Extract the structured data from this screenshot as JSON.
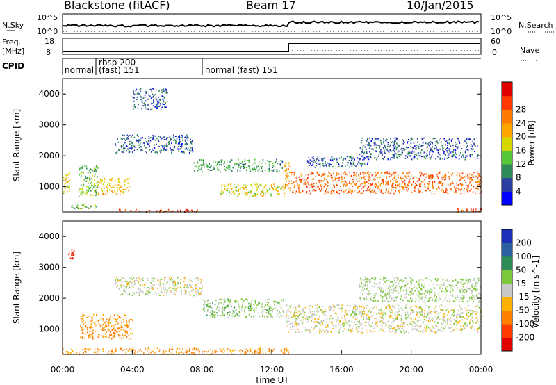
{
  "header": {
    "radar": "Blackstone (fitACF)",
    "beam": "Beam 17",
    "date": "10/Jan/2015"
  },
  "left_labels": {
    "nsky": "N.Sky",
    "freq_line1": "Freq.",
    "freq_line2": "[MHz]",
    "cpid": "CPID"
  },
  "right_labels": {
    "nsearch": "N.Search",
    "nave": "Nave"
  },
  "noise_panel": {
    "left_ticks": [
      "10^5",
      "10^0"
    ],
    "right_ticks": [
      "10^5",
      "10^0"
    ]
  },
  "freq_panel": {
    "left_ticks": [
      "18",
      "8"
    ],
    "right_ticks": [
      "60",
      "0"
    ]
  },
  "cpid_panel": {
    "segments": [
      {
        "start_h": 0.0,
        "label": "normal"
      },
      {
        "start_h": 1.9,
        "label_line1": "rbsp 200",
        "label_line2": "(fast) 151"
      },
      {
        "start_h": 8.0,
        "label": "normal (fast) 151"
      }
    ]
  },
  "x_axis": {
    "label": "Time UT",
    "ticks": [
      "00:00",
      "04:00",
      "08:00",
      "12:00",
      "16:00",
      "20:00",
      "00:00"
    ],
    "tick_hours": [
      0,
      4,
      8,
      12,
      16,
      20,
      24
    ]
  },
  "y_axis": {
    "label": "Slant Range [km]",
    "ticks": [
      "1000",
      "2000",
      "3000",
      "4000"
    ],
    "tick_values": [
      1000,
      2000,
      3000,
      4000
    ],
    "range": [
      180,
      4500
    ]
  },
  "power_colorbar": {
    "label": "Power [dB]",
    "ticks": [
      "4",
      "8",
      "12",
      "16",
      "20",
      "24",
      "28"
    ],
    "colors": [
      "#0000ff",
      "#2a3f9f",
      "#2e8a57",
      "#56c83a",
      "#d6d600",
      "#ffa500",
      "#ff7a00",
      "#ff3a00",
      "#e00000"
    ]
  },
  "velocity_colorbar": {
    "label": "Velocity [m s^-1]",
    "ticks": [
      "200",
      "100",
      "50",
      "15",
      "-15",
      "-50",
      "-100",
      "-200"
    ],
    "colors": [
      "#1b2fb8",
      "#2a5fa0",
      "#2e8a57",
      "#7dc83a",
      "#c8c8c8",
      "#ffb000",
      "#ff8000",
      "#ff3a00",
      "#e00000"
    ]
  },
  "chart_data": {
    "type": "heatmap",
    "title": "Blackstone (fitACF) Beam 17 10/Jan/2015",
    "xlabel": "Time UT",
    "ylabel": "Slant Range [km]",
    "xlim_hours": [
      0,
      24
    ],
    "ylim_km": [
      180,
      4500
    ],
    "panels": [
      {
        "name": "Power [dB]",
        "scatter_bands": [
          {
            "t0": 0.0,
            "t1": 0.4,
            "r0": 800,
            "r1": 1500,
            "value": 16
          },
          {
            "t0": 0.5,
            "t1": 2.0,
            "r0": 300,
            "r1": 450,
            "value": 12
          },
          {
            "t0": 0.9,
            "t1": 2.0,
            "r0": 700,
            "r1": 1700,
            "value": 12
          },
          {
            "t0": 2.0,
            "t1": 3.8,
            "r0": 750,
            "r1": 1300,
            "value": 18
          },
          {
            "t0": 3.2,
            "t1": 7.8,
            "r0": 200,
            "r1": 280,
            "value": 27
          },
          {
            "t0": 4.0,
            "t1": 6.0,
            "r0": 3500,
            "r1": 4200,
            "value": 6
          },
          {
            "t0": 3.0,
            "t1": 7.5,
            "r0": 2100,
            "r1": 2700,
            "value": 6
          },
          {
            "t0": 7.5,
            "t1": 12.6,
            "r0": 1500,
            "r1": 1900,
            "value": 10
          },
          {
            "t0": 9.0,
            "t1": 12.8,
            "r0": 700,
            "r1": 1100,
            "value": 16
          },
          {
            "t0": 12.7,
            "t1": 13.0,
            "r0": 900,
            "r1": 1800,
            "value": 20
          },
          {
            "t0": 13.0,
            "t1": 24.0,
            "r0": 800,
            "r1": 1500,
            "value": 24
          },
          {
            "t0": 14.0,
            "t1": 17.5,
            "r0": 1650,
            "r1": 2000,
            "value": 6
          },
          {
            "t0": 17.0,
            "t1": 23.8,
            "r0": 1900,
            "r1": 2600,
            "value": 6
          },
          {
            "t0": 22.5,
            "t1": 24.0,
            "r0": 200,
            "r1": 300,
            "value": 26
          }
        ]
      },
      {
        "name": "Velocity [m s^-1]",
        "scatter_bands": [
          {
            "t0": 0.3,
            "t1": 0.7,
            "r0": 3300,
            "r1": 3600,
            "value": -200
          },
          {
            "t0": 0.0,
            "t1": 13.0,
            "r0": 200,
            "r1": 400,
            "value": -60
          },
          {
            "t0": 1.0,
            "t1": 4.0,
            "r0": 700,
            "r1": 1500,
            "value": -60
          },
          {
            "t0": 3.0,
            "t1": 8.0,
            "r0": 2100,
            "r1": 2700,
            "value": 0
          },
          {
            "t0": 8.0,
            "t1": 12.7,
            "r0": 1400,
            "r1": 2000,
            "value": 30
          },
          {
            "t0": 12.8,
            "t1": 24.0,
            "r0": 900,
            "r1": 1800,
            "value": 0
          },
          {
            "t0": 17.0,
            "t1": 24.0,
            "r0": 1900,
            "r1": 2700,
            "value": 20
          }
        ]
      }
    ]
  }
}
